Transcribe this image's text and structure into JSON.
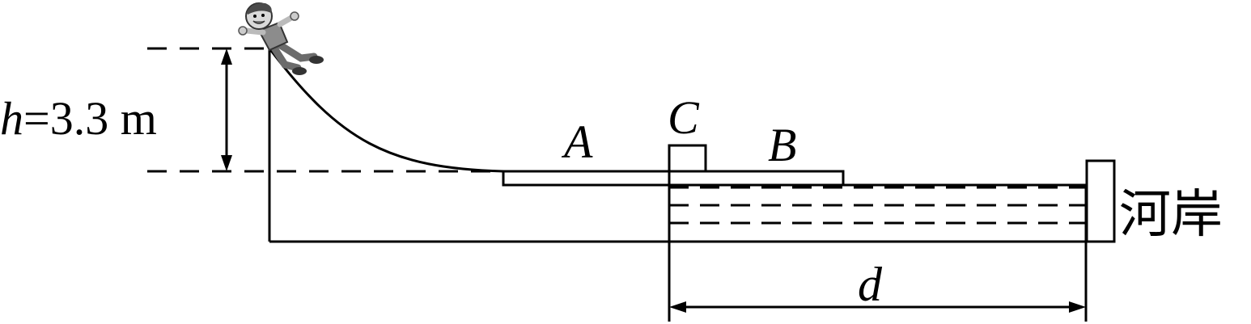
{
  "diagram": {
    "height_label": {
      "symbol": "h",
      "equals_value": "=3.3 m"
    },
    "label_A": "A",
    "label_B": "B",
    "label_C": "C",
    "label_d": "d",
    "river_bank_label": "河岸",
    "colors": {
      "stroke": "#000000",
      "background": "#ffffff"
    },
    "icons": {
      "child": "sliding-child-icon"
    }
  }
}
